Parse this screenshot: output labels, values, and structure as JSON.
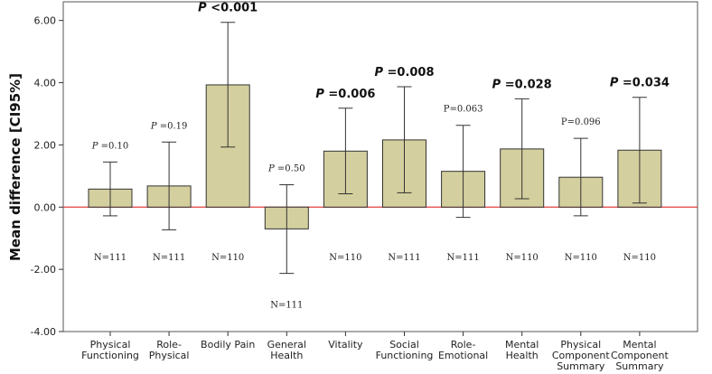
{
  "chart_data": {
    "type": "bar",
    "title": "",
    "xlabel": "",
    "ylabel": "Mean difference [CI95%]",
    "ylim": [
      -4.0,
      6.6
    ],
    "yticks": [
      "-4.00",
      "-2.00",
      "0.00",
      "2.00",
      "4.00",
      "6.00"
    ],
    "ytick_values": [
      -4,
      -2,
      0,
      2,
      4,
      6
    ],
    "reference_line": {
      "y": 0,
      "color": "#e04040"
    },
    "bar_color": "#d4cf9e",
    "bar_stroke": "#333333",
    "categories": [
      {
        "lines": [
          "Physical",
          "Functioning"
        ]
      },
      {
        "lines": [
          "Role-",
          "Physical"
        ]
      },
      {
        "lines": [
          "Bodily Pain"
        ]
      },
      {
        "lines": [
          "General",
          "Health"
        ]
      },
      {
        "lines": [
          "Vitality"
        ]
      },
      {
        "lines": [
          "Social",
          "Functioning"
        ]
      },
      {
        "lines": [
          "Role-",
          "Emotional"
        ]
      },
      {
        "lines": [
          "Mental",
          "Health"
        ]
      },
      {
        "lines": [
          "Physical",
          "Component",
          "Summary"
        ]
      },
      {
        "lines": [
          "Mental",
          "Component",
          "Summary"
        ]
      }
    ],
    "values": [
      0.58,
      0.68,
      3.93,
      -0.7,
      1.8,
      2.16,
      1.15,
      1.87,
      0.96,
      1.83
    ],
    "ci_low": [
      -0.28,
      -0.73,
      1.93,
      -2.13,
      0.43,
      0.46,
      -0.33,
      0.27,
      -0.28,
      0.13
    ],
    "ci_high": [
      1.45,
      2.09,
      5.94,
      0.72,
      3.18,
      3.87,
      2.63,
      3.48,
      2.21,
      3.53
    ],
    "p_values": [
      {
        "prefix": "P",
        "text": " =0.10",
        "bold": false
      },
      {
        "prefix": "P",
        "text": " =0.19",
        "bold": false
      },
      {
        "prefix": "P",
        "text": " <0.001",
        "bold": true
      },
      {
        "prefix": "P",
        "text": " =0.50",
        "bold": false
      },
      {
        "prefix": "P",
        "text": " =0.006",
        "bold": true
      },
      {
        "prefix": "P",
        "text": " =0.008",
        "bold": true
      },
      {
        "prefix": "",
        "text": "P=0.063",
        "bold": false
      },
      {
        "prefix": "P",
        "text": " =0.028",
        "bold": true
      },
      {
        "prefix": "",
        "text": "P=0.096",
        "bold": false
      },
      {
        "prefix": "P",
        "text": " =0.034",
        "bold": true
      }
    ],
    "n_labels": [
      "N=111",
      "N=111",
      "N=110",
      "N=111",
      "N=110",
      "N=111",
      "N=111",
      "N=110",
      "N=110",
      "N=110"
    ]
  }
}
